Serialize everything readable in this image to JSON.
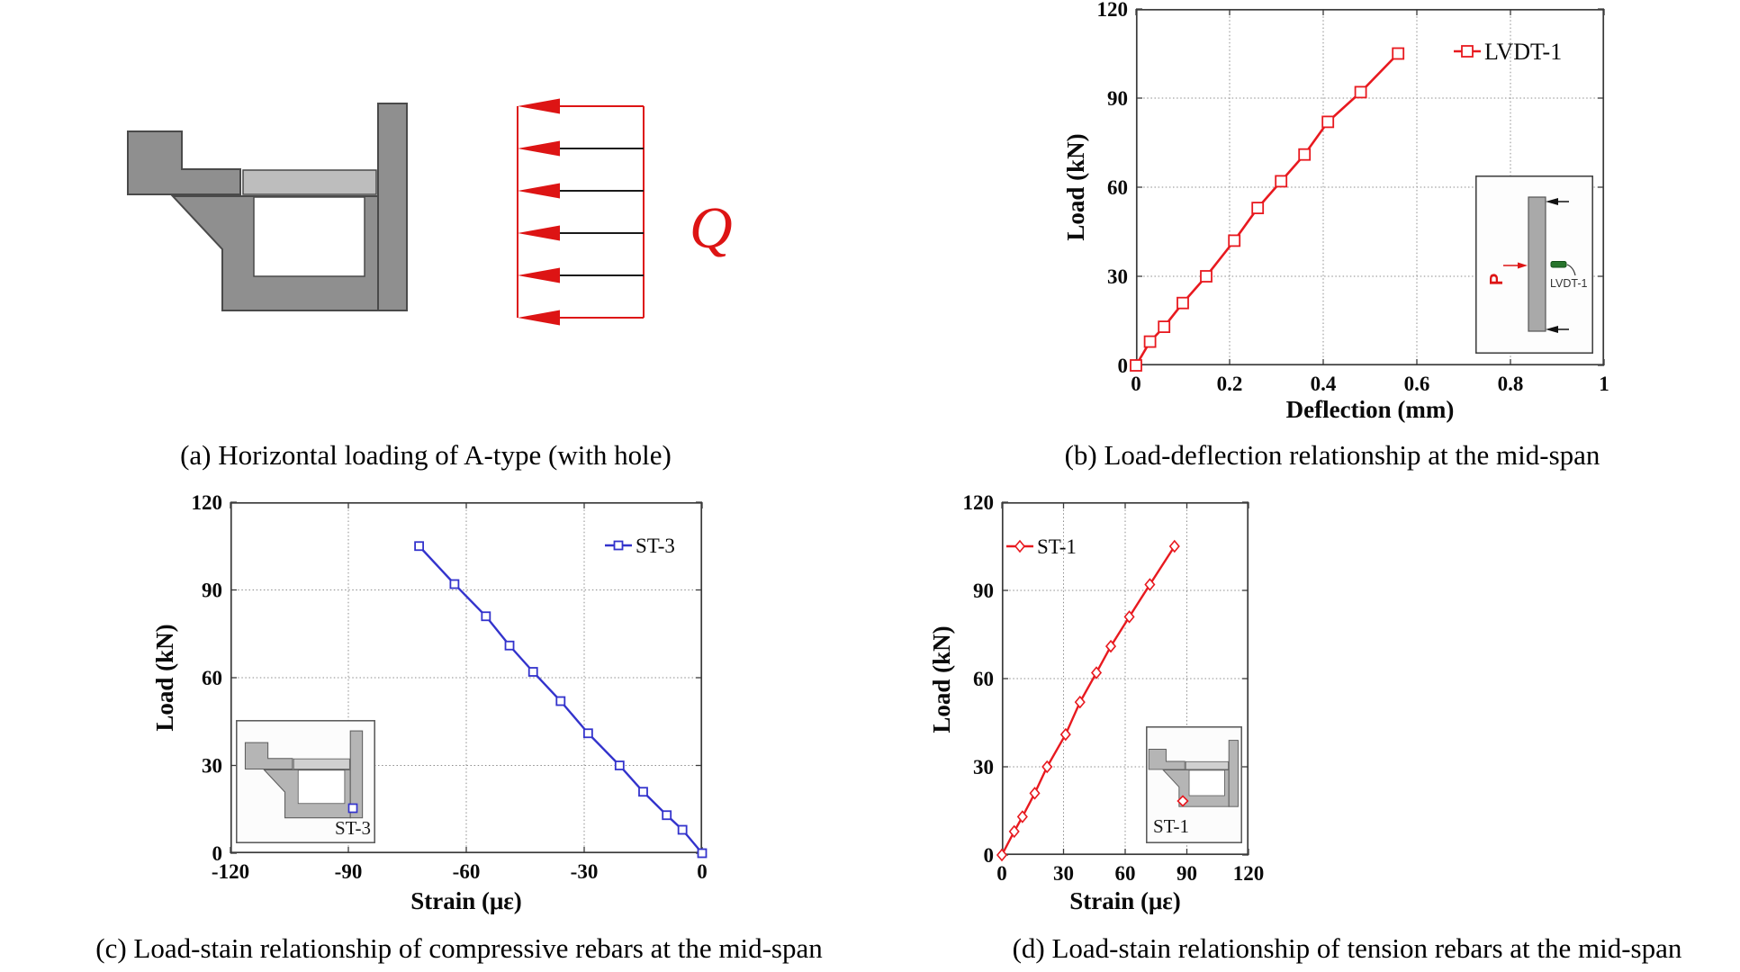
{
  "figure": {
    "background": "#ffffff",
    "accent_red": "#e8191f",
    "accent_blue": "#3333cc"
  },
  "panel_a": {
    "caption": "(a) Horizontal loading of A-type (with hole)",
    "load_label": "Q",
    "colors": {
      "body_gray": "#8f8f8f",
      "slab_gray": "#bdbdbd",
      "outline": "#4a4a4a",
      "load_red": "#dd1414"
    }
  },
  "panel_b": {
    "caption": "(b) Load-deflection relationship at the mid-span",
    "inset": {
      "force_label": "P",
      "sensor_label": "LVDT-1"
    }
  },
  "panel_c": {
    "caption": "(c) Load-stain relationship of compressive rebars at the mid-span",
    "inset": {
      "gauge_label": "ST-3"
    }
  },
  "panel_d": {
    "caption": "(d) Load-stain relationship of tension rebars at the mid-span",
    "inset": {
      "gauge_label": "ST-1"
    }
  },
  "chart_data": [
    {
      "id": "load_deflection_midspan",
      "type": "line",
      "title": "",
      "xlabel": "Deflection (mm)",
      "ylabel": "Load (kN)",
      "xlim": [
        0,
        1
      ],
      "ylim": [
        0,
        120
      ],
      "xticks": [
        0,
        0.2,
        0.4,
        0.6,
        0.8,
        1
      ],
      "yticks": [
        0,
        30,
        60,
        90,
        120
      ],
      "grid": true,
      "legend_position": "top-right",
      "series": [
        {
          "name": "LVDT-1",
          "color": "#e8191f",
          "marker": "square",
          "msize": 12,
          "lw": 2.6,
          "x": [
            0,
            0.03,
            0.06,
            0.1,
            0.15,
            0.21,
            0.26,
            0.31,
            0.36,
            0.41,
            0.48,
            0.56
          ],
          "y": [
            0,
            8,
            13,
            21,
            30,
            42,
            53,
            62,
            71,
            82,
            92,
            105
          ]
        }
      ]
    },
    {
      "id": "load_strain_compressive_rebars",
      "type": "line",
      "title": "",
      "xlabel": "Strain (με)",
      "ylabel": "Load (kN)",
      "xlim": [
        -120,
        0
      ],
      "ylim": [
        0,
        120
      ],
      "xticks": [
        -120,
        -90,
        -60,
        -30,
        0
      ],
      "yticks": [
        0,
        30,
        60,
        90,
        120
      ],
      "grid": true,
      "legend_position": "top-right",
      "series": [
        {
          "name": "ST-3",
          "color": "#3333cc",
          "marker": "square",
          "msize": 9,
          "lw": 2.4,
          "x": [
            -72,
            -63,
            -55,
            -49,
            -43,
            -36,
            -29,
            -21,
            -15,
            -9,
            -5,
            0
          ],
          "y": [
            105,
            92,
            81,
            71,
            62,
            52,
            41,
            30,
            21,
            13,
            8,
            0
          ]
        }
      ]
    },
    {
      "id": "load_strain_tension_rebars",
      "type": "line",
      "title": "",
      "xlabel": "Strain (με)",
      "ylabel": "Load (kN)",
      "xlim": [
        0,
        120
      ],
      "ylim": [
        0,
        120
      ],
      "xticks": [
        0,
        30,
        60,
        90,
        120
      ],
      "yticks": [
        0,
        30,
        60,
        90,
        120
      ],
      "grid": true,
      "legend_position": "top-left",
      "series": [
        {
          "name": "ST-1",
          "color": "#e8191f",
          "marker": "diamond",
          "msize": 10,
          "lw": 2.4,
          "x": [
            0,
            6,
            10,
            16,
            22,
            31,
            38,
            46,
            53,
            62,
            72,
            84
          ],
          "y": [
            0,
            8,
            13,
            21,
            30,
            41,
            52,
            62,
            71,
            81,
            92,
            105
          ]
        }
      ]
    }
  ]
}
